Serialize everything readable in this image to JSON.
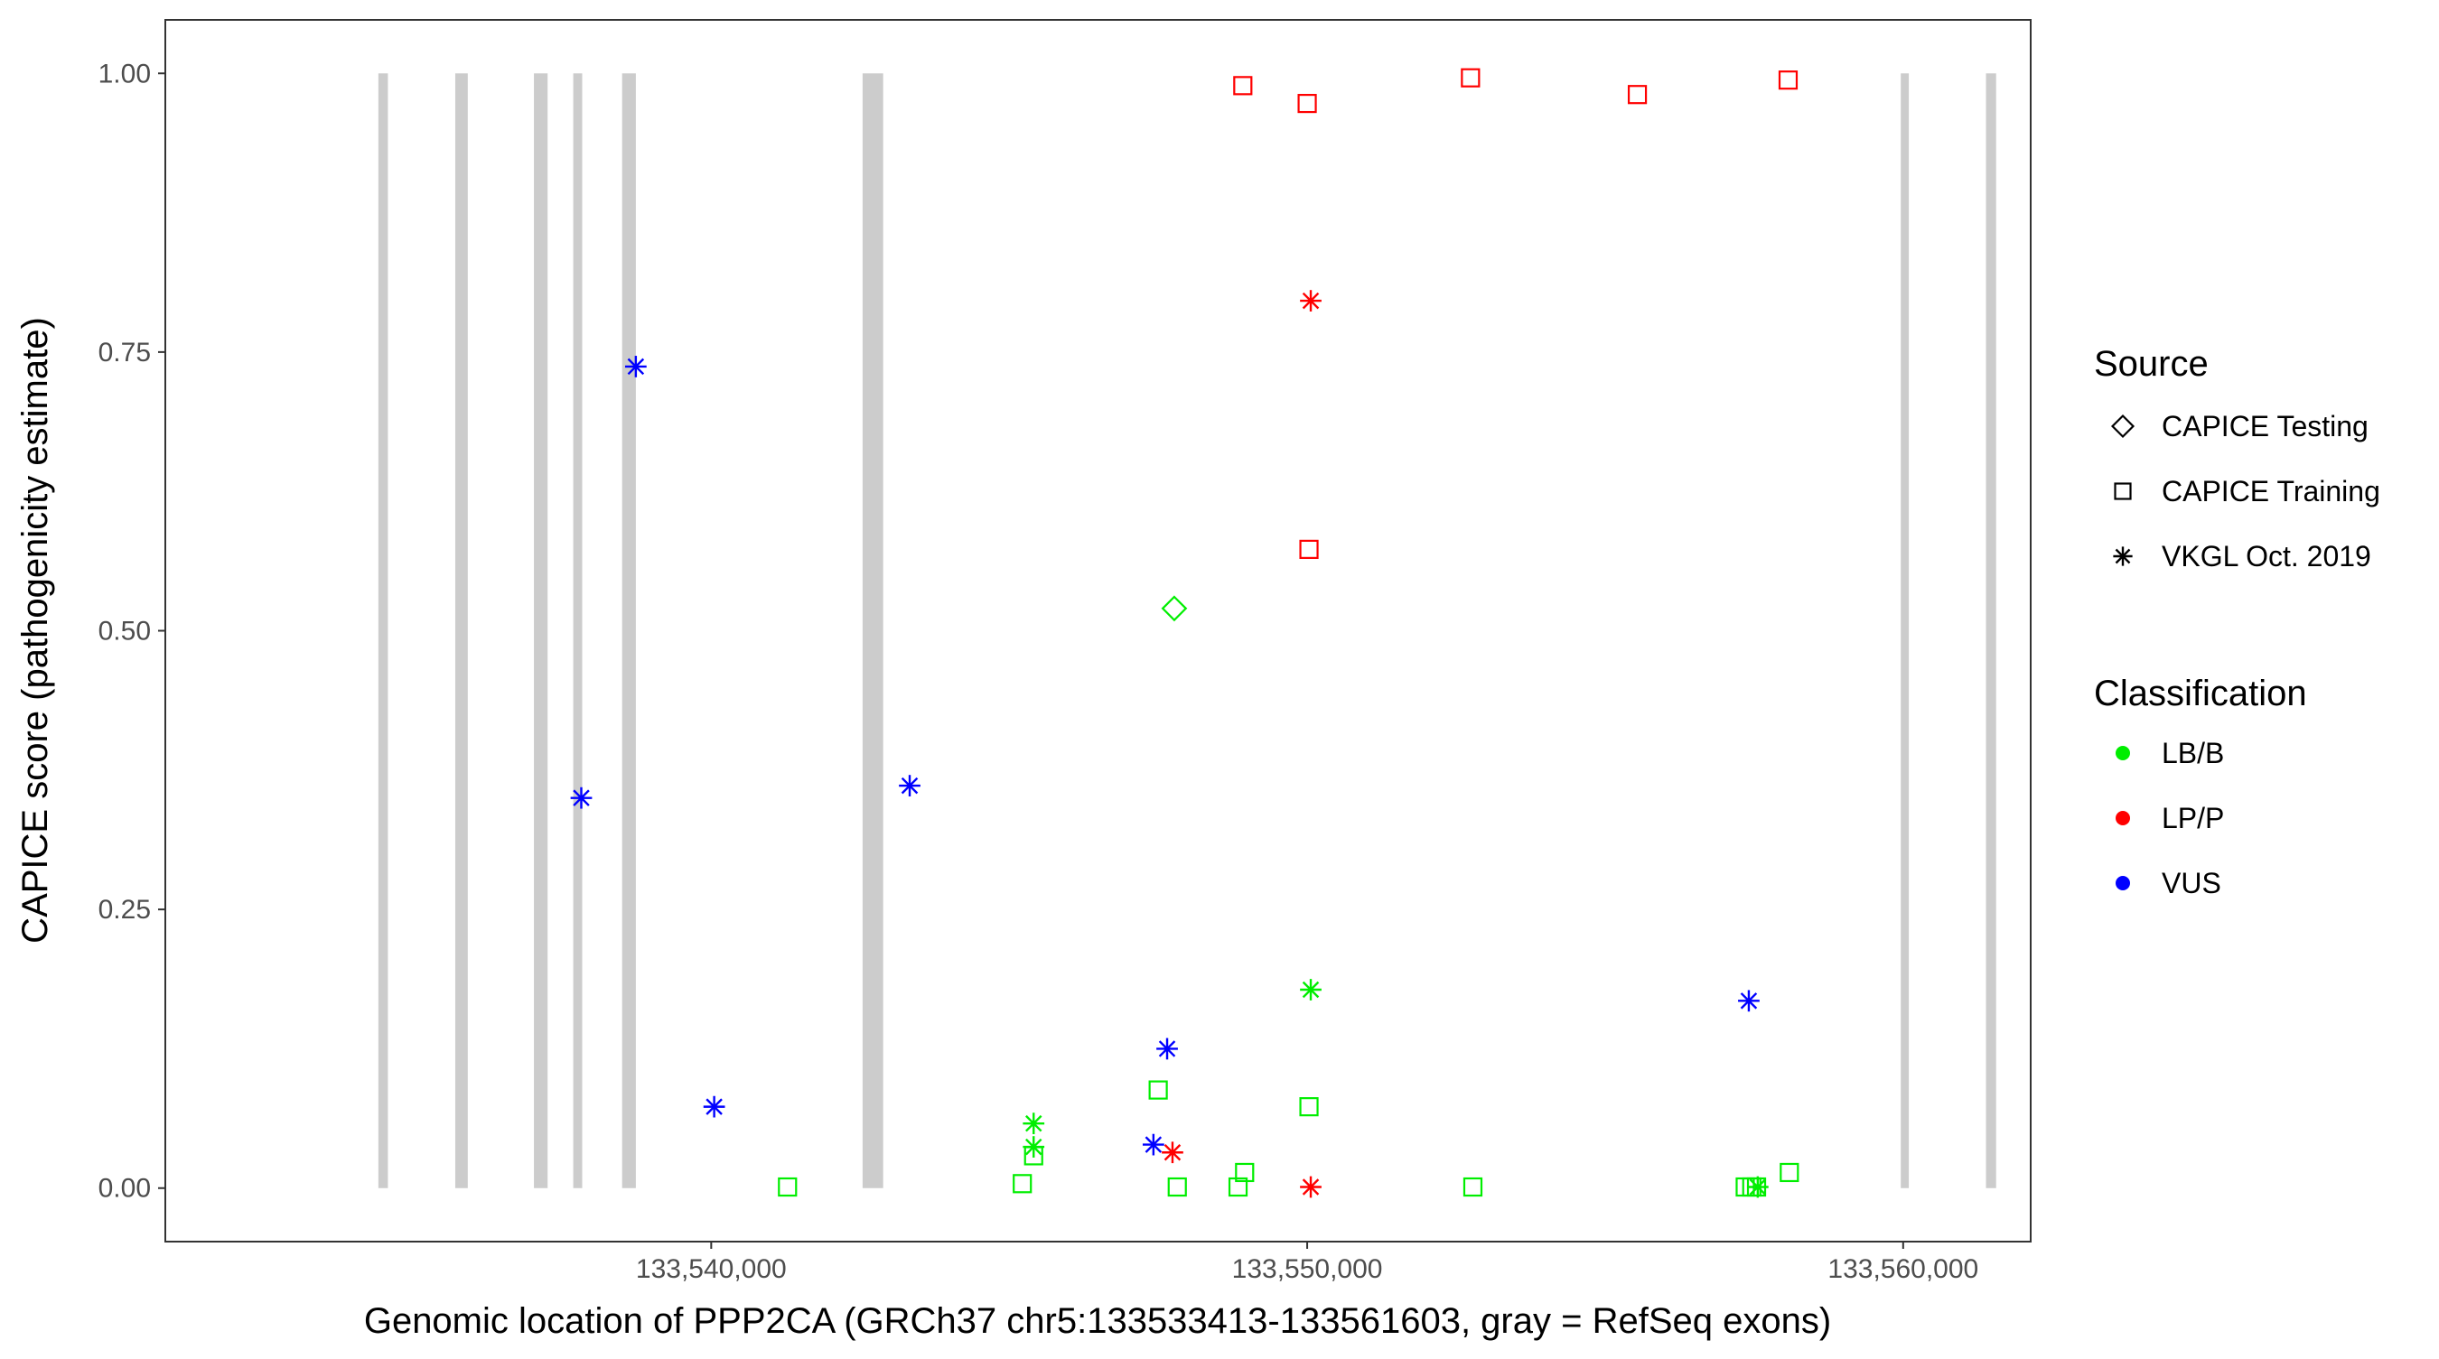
{
  "chart_data": {
    "type": "scatter",
    "xlabel": "Genomic location of PPP2CA (GRCh37 chr5:133533413-133561603, gray = RefSeq exons)",
    "ylabel": "CAPICE score (pathogenicity estimate)",
    "xlim": [
      133530840,
      133562140
    ],
    "ylim": [
      -0.048,
      1.048
    ],
    "x_ticks": [
      133540000,
      133550000,
      133560000
    ],
    "x_tick_labels": [
      "133,540,000",
      "133,550,000",
      "133,560,000"
    ],
    "y_ticks": [
      0,
      0.25,
      0.5,
      0.75,
      1
    ],
    "y_tick_labels": [
      "0.00",
      "0.25",
      "0.50",
      "0.75",
      "1.00"
    ],
    "grid": false,
    "exons": [
      [
        133534415,
        133534575
      ],
      [
        133535705,
        133535915
      ],
      [
        133537025,
        133537255
      ],
      [
        133537685,
        133537835
      ],
      [
        133538505,
        133538735
      ],
      [
        133542540,
        133542885
      ],
      [
        133559960,
        133560095
      ],
      [
        133561390,
        133561560
      ]
    ],
    "exon_color": "#cccccc",
    "classification_colors": {
      "LB/B": "#00ee00",
      "LP/P": "#ff0000",
      "VUS": "#0000ff"
    },
    "points": [
      {
        "x": 133537820,
        "y": 0.35,
        "source": "VKGL Oct. 2019",
        "class": "VUS"
      },
      {
        "x": 133538735,
        "y": 0.737,
        "source": "VKGL Oct. 2019",
        "class": "VUS"
      },
      {
        "x": 133540050,
        "y": 0.073,
        "source": "VKGL Oct. 2019",
        "class": "VUS"
      },
      {
        "x": 133543330,
        "y": 0.361,
        "source": "VKGL Oct. 2019",
        "class": "VUS"
      },
      {
        "x": 133547420,
        "y": 0.039,
        "source": "VKGL Oct. 2019",
        "class": "VUS"
      },
      {
        "x": 133547650,
        "y": 0.125,
        "source": "VKGL Oct. 2019",
        "class": "VUS"
      },
      {
        "x": 133557410,
        "y": 0.168,
        "source": "VKGL Oct. 2019",
        "class": "VUS"
      },
      {
        "x": 133545410,
        "y": 0.058,
        "source": "VKGL Oct. 2019",
        "class": "LB/B"
      },
      {
        "x": 133545410,
        "y": 0.037,
        "source": "VKGL Oct. 2019",
        "class": "LB/B"
      },
      {
        "x": 133550060,
        "y": 0.178,
        "source": "VKGL Oct. 2019",
        "class": "LB/B"
      },
      {
        "x": 133557560,
        "y": 0.001,
        "source": "VKGL Oct. 2019",
        "class": "LB/B"
      },
      {
        "x": 133547740,
        "y": 0.032,
        "source": "VKGL Oct. 2019",
        "class": "LP/P"
      },
      {
        "x": 133550060,
        "y": 0.796,
        "source": "VKGL Oct. 2019",
        "class": "LP/P"
      },
      {
        "x": 133550060,
        "y": 0.001,
        "source": "VKGL Oct. 2019",
        "class": "LP/P"
      },
      {
        "x": 133547770,
        "y": 0.52,
        "source": "CAPICE Testing",
        "class": "LB/B"
      },
      {
        "x": 133548920,
        "y": 0.989,
        "source": "CAPICE Training",
        "class": "LP/P"
      },
      {
        "x": 133550000,
        "y": 0.973,
        "source": "CAPICE Training",
        "class": "LP/P"
      },
      {
        "x": 133550030,
        "y": 0.573,
        "source": "CAPICE Training",
        "class": "LP/P"
      },
      {
        "x": 133552740,
        "y": 0.996,
        "source": "CAPICE Training",
        "class": "LP/P"
      },
      {
        "x": 133555540,
        "y": 0.981,
        "source": "CAPICE Training",
        "class": "LP/P"
      },
      {
        "x": 133558070,
        "y": 0.994,
        "source": "CAPICE Training",
        "class": "LP/P"
      },
      {
        "x": 133541280,
        "y": 0.001,
        "source": "CAPICE Training",
        "class": "LB/B"
      },
      {
        "x": 133545220,
        "y": 0.004,
        "source": "CAPICE Training",
        "class": "LB/B"
      },
      {
        "x": 133545410,
        "y": 0.029,
        "source": "CAPICE Training",
        "class": "LB/B"
      },
      {
        "x": 133547500,
        "y": 0.088,
        "source": "CAPICE Training",
        "class": "LB/B"
      },
      {
        "x": 133547820,
        "y": 0.001,
        "source": "CAPICE Training",
        "class": "LB/B"
      },
      {
        "x": 133548840,
        "y": 0.001,
        "source": "CAPICE Training",
        "class": "LB/B"
      },
      {
        "x": 133548950,
        "y": 0.014,
        "source": "CAPICE Training",
        "class": "LB/B"
      },
      {
        "x": 133550030,
        "y": 0.073,
        "source": "CAPICE Training",
        "class": "LB/B"
      },
      {
        "x": 133552780,
        "y": 0.001,
        "source": "CAPICE Training",
        "class": "LB/B"
      },
      {
        "x": 133557350,
        "y": 0.001,
        "source": "CAPICE Training",
        "class": "LB/B"
      },
      {
        "x": 133557460,
        "y": 0.001,
        "source": "CAPICE Training",
        "class": "LB/B"
      },
      {
        "x": 133557540,
        "y": 0.001,
        "source": "CAPICE Training",
        "class": "LB/B"
      },
      {
        "x": 133558090,
        "y": 0.014,
        "source": "CAPICE Training",
        "class": "LB/B"
      }
    ],
    "legend": {
      "placement": "right",
      "source_title": "Source",
      "source_items": [
        {
          "label": "CAPICE Testing",
          "shape": "diamond"
        },
        {
          "label": "CAPICE Training",
          "shape": "square"
        },
        {
          "label": "VKGL Oct. 2019",
          "shape": "asterisk"
        }
      ],
      "classification_title": "Classification",
      "classification_items": [
        {
          "label": "LB/B",
          "color": "#00ee00"
        },
        {
          "label": "LP/P",
          "color": "#ff0000"
        },
        {
          "label": "VUS",
          "color": "#0000ff"
        }
      ]
    }
  }
}
